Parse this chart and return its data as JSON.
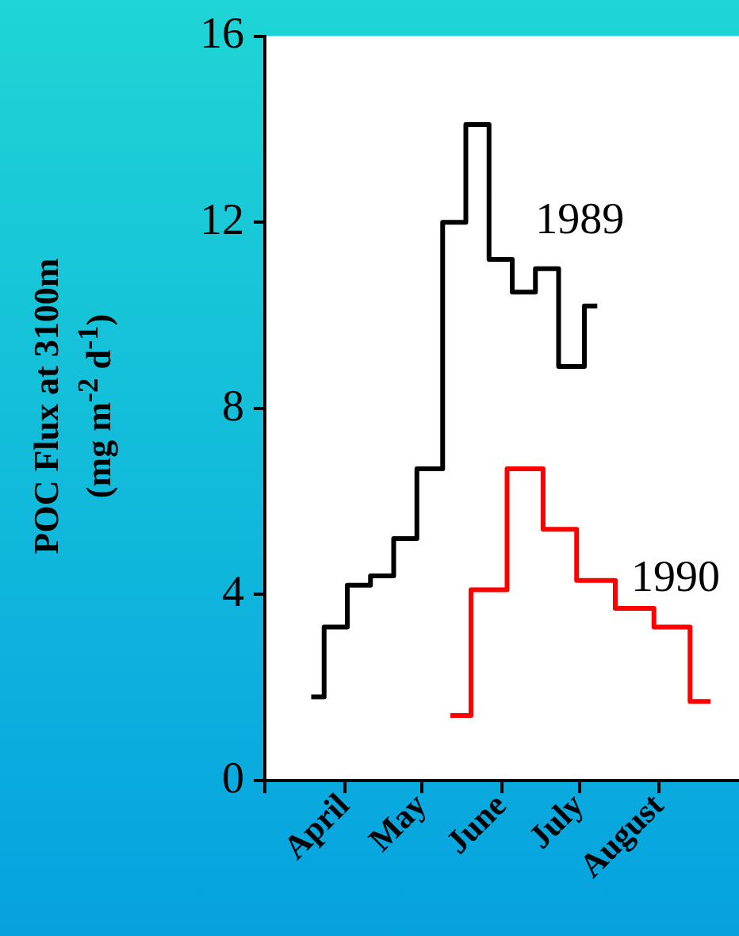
{
  "chart_data": {
    "type": "step",
    "ylabel": "POC Flux at 3100m\n(mg m$^{-2}$ d$^{-1}$)",
    "xlim": [
      "--03-01",
      "--09-01"
    ],
    "xticks": [
      {
        "value": "--03-01",
        "label": null
      },
      {
        "value": "--04-01",
        "label": "April"
      },
      {
        "value": "--05-01",
        "label": "May"
      },
      {
        "value": "--06-01",
        "label": "June"
      },
      {
        "value": "--07-01",
        "label": "July"
      },
      {
        "value": "--08-01",
        "label": "August"
      }
    ],
    "ylim": [
      0,
      16
    ],
    "yticks": [
      0,
      4,
      8,
      12,
      16
    ],
    "grid": false,
    "series": [
      {
        "name": "1989",
        "color": "#000000",
        "x": [
          "--03-19",
          "--03-24",
          "--04-02",
          "--04-11",
          "--04-20",
          "--04-29",
          "--05-09",
          "--05-18",
          "--05-27",
          "--06-05",
          "--06-14",
          "--06-23",
          "--07-03",
          "--07-08"
        ],
        "values": [
          1.8,
          3.3,
          4.2,
          4.4,
          5.2,
          6.7,
          12.0,
          14.1,
          11.2,
          10.5,
          11.0,
          8.9,
          10.2,
          10.2
        ]
      },
      {
        "name": "1990",
        "color": "#ff0000",
        "x": [
          "--05-12",
          "--05-20",
          "--06-03",
          "--06-17",
          "--06-30",
          "--07-15",
          "--07-30",
          "--08-13",
          "--08-21"
        ],
        "values": [
          1.4,
          4.1,
          6.7,
          5.4,
          4.3,
          3.7,
          3.3,
          1.7,
          1.7
        ]
      }
    ]
  }
}
